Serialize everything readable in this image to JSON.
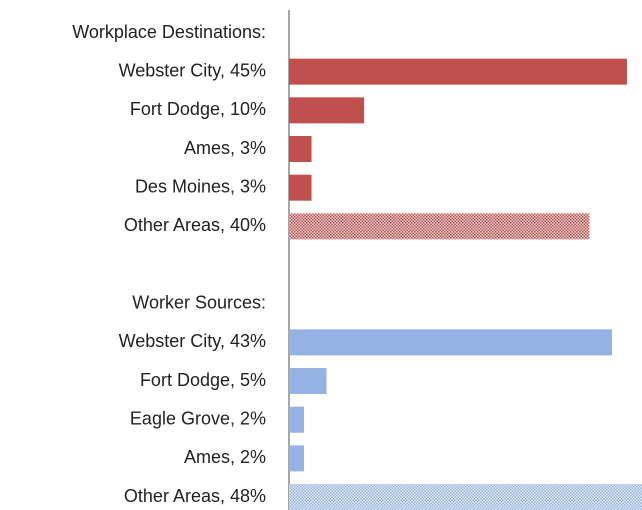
{
  "chart_data": {
    "type": "hbar",
    "categories": [
      "Workplace Destinations:",
      "Webster City, 45%",
      "Fort Dodge, 10%",
      "Ames, 3%",
      "Des Moines, 3%",
      "Other Areas, 40%",
      null,
      "Worker Sources:",
      "Webster City, 43%",
      "Fort Dodge, 5%",
      "Eagle Grove, 2%",
      "Ames, 2%",
      "Other Areas, 48%"
    ],
    "values": [
      null,
      45,
      10,
      3,
      3,
      40,
      null,
      null,
      43,
      5,
      2,
      2,
      48
    ],
    "colors": [
      null,
      "#c0504d",
      "#c0504d",
      "#c0504d",
      "#c0504d",
      "#c0504d",
      null,
      null,
      "#95b3e2",
      "#95b3e2",
      "#95b3e2",
      "#95b3e2",
      "#95b3e2"
    ],
    "hatched": [
      false,
      false,
      false,
      false,
      false,
      true,
      false,
      false,
      false,
      false,
      false,
      false,
      true
    ],
    "xlim": [
      0,
      47
    ]
  }
}
